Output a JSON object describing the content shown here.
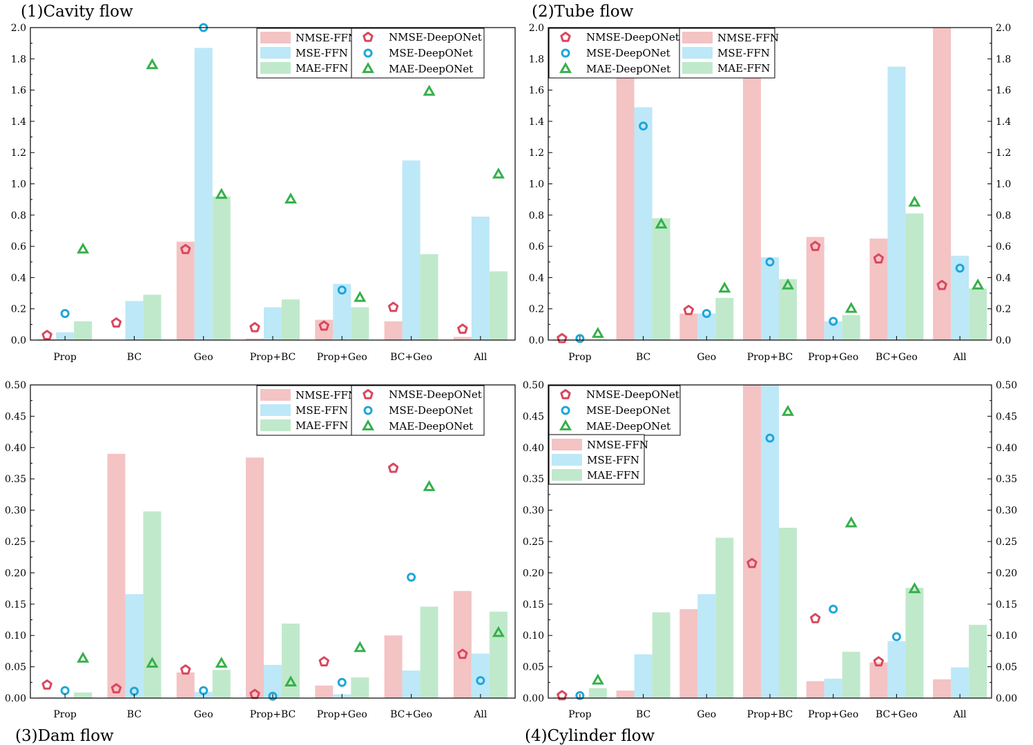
{
  "figure": {
    "description_type": "2x2 grid of grouped bar charts with marker overlays"
  },
  "colors": {
    "nmse_bar": "#f4c3c4",
    "mse_bar": "#bde8f8",
    "mae_bar": "#c0e9cb",
    "nmse_marker": "#d9475e",
    "mse_marker": "#1ea6d8",
    "mae_marker": "#35b04a"
  },
  "chart_data": [
    {
      "id": "p1",
      "type": "bar",
      "title": "(1)Cavity flow",
      "title_pos": "top",
      "categories": [
        "Prop",
        "BC",
        "Geo",
        "Prop+BC",
        "Prop+Geo",
        "BC+Geo",
        "All"
      ],
      "ylim": [
        0,
        2.0
      ],
      "yticks": [
        "0.0",
        "0.2",
        "0.4",
        "0.6",
        "0.8",
        "1.0",
        "1.2",
        "1.4",
        "1.6",
        "1.8",
        "2.0"
      ],
      "right_axis": false,
      "series": [
        {
          "name": "NMSE-FFN",
          "kind": "bar",
          "color": "#f4c3c4",
          "values": [
            0.005,
            0.0,
            0.63,
            0.01,
            0.13,
            0.12,
            0.02
          ]
        },
        {
          "name": "MSE-FFN",
          "kind": "bar",
          "color": "#bde8f8",
          "values": [
            0.05,
            0.25,
            1.87,
            0.21,
            0.36,
            1.15,
            0.79
          ]
        },
        {
          "name": "MAE-FFN",
          "kind": "bar",
          "color": "#c0e9cb",
          "values": [
            0.12,
            0.29,
            0.92,
            0.26,
            0.21,
            0.55,
            0.44
          ]
        },
        {
          "name": "NMSE-DeepONet",
          "kind": "marker",
          "marker": "pentagon",
          "color": "#d9475e",
          "values": [
            0.03,
            0.11,
            0.58,
            0.08,
            0.09,
            0.21,
            0.07
          ]
        },
        {
          "name": "MSE-DeepONet",
          "kind": "marker",
          "marker": "circle",
          "color": "#1ea6d8",
          "values": [
            0.17,
            null,
            2.0,
            null,
            0.32,
            null,
            null
          ]
        },
        {
          "name": "MAE-DeepONet",
          "kind": "marker",
          "marker": "triangle",
          "color": "#35b04a",
          "values": [
            0.58,
            1.76,
            0.93,
            0.9,
            0.27,
            1.59,
            1.06
          ]
        }
      ],
      "legend": {
        "placement": "top-right",
        "layout": "bars-left-markers-right"
      }
    },
    {
      "id": "p2",
      "type": "bar",
      "title": "(2)Tube flow",
      "title_pos": "top",
      "categories": [
        "Prop",
        "BC",
        "Geo",
        "Prop+BC",
        "Prop+Geo",
        "BC+Geo",
        "All"
      ],
      "ylim": [
        0,
        2.0
      ],
      "yticks": [
        "0.0",
        "0.2",
        "0.4",
        "0.6",
        "0.8",
        "1.0",
        "1.2",
        "1.4",
        "1.6",
        "1.8",
        "2.0"
      ],
      "right_axis": true,
      "series": [
        {
          "name": "NMSE-FFN",
          "kind": "bar",
          "color": "#f4c3c4",
          "values": [
            0.005,
            2.0,
            0.17,
            2.0,
            0.66,
            0.65,
            2.0
          ]
        },
        {
          "name": "MSE-FFN",
          "kind": "bar",
          "color": "#bde8f8",
          "values": [
            0.005,
            1.49,
            0.17,
            0.53,
            0.12,
            1.75,
            0.54
          ]
        },
        {
          "name": "MAE-FFN",
          "kind": "bar",
          "color": "#c0e9cb",
          "values": [
            0.005,
            0.78,
            0.27,
            0.39,
            0.16,
            0.81,
            0.33
          ]
        },
        {
          "name": "NMSE-DeepONet",
          "kind": "marker",
          "marker": "pentagon",
          "color": "#d9475e",
          "values": [
            0.01,
            null,
            0.19,
            null,
            0.6,
            0.52,
            0.35
          ]
        },
        {
          "name": "MSE-DeepONet",
          "kind": "marker",
          "marker": "circle",
          "color": "#1ea6d8",
          "values": [
            0.01,
            1.37,
            0.17,
            0.5,
            0.12,
            null,
            0.46
          ]
        },
        {
          "name": "MAE-DeepONet",
          "kind": "marker",
          "marker": "triangle",
          "color": "#35b04a",
          "values": [
            0.04,
            0.74,
            0.33,
            0.35,
            0.2,
            0.88,
            0.35
          ]
        }
      ],
      "legend": {
        "placement": "top-left",
        "layout": "markers-left-bars-right"
      }
    },
    {
      "id": "p3",
      "type": "bar",
      "title": "(3)Dam flow",
      "title_pos": "bottom",
      "categories": [
        "Prop",
        "BC",
        "Geo",
        "Prop+BC",
        "Prop+Geo",
        "BC+Geo",
        "All"
      ],
      "ylim": [
        0,
        0.5
      ],
      "yticks": [
        "0.00",
        "0.05",
        "0.10",
        "0.15",
        "0.20",
        "0.25",
        "0.30",
        "0.35",
        "0.40",
        "0.45",
        "0.50"
      ],
      "right_axis": false,
      "series": [
        {
          "name": "NMSE-FFN",
          "kind": "bar",
          "color": "#f4c3c4",
          "values": [
            0.001,
            0.39,
            0.041,
            0.384,
            0.02,
            0.1,
            0.171
          ]
        },
        {
          "name": "MSE-FFN",
          "kind": "bar",
          "color": "#bde8f8",
          "values": [
            0.001,
            0.166,
            0.01,
            0.053,
            0.006,
            0.044,
            0.071
          ]
        },
        {
          "name": "MAE-FFN",
          "kind": "bar",
          "color": "#c0e9cb",
          "values": [
            0.009,
            0.298,
            0.045,
            0.119,
            0.033,
            0.146,
            0.138
          ]
        },
        {
          "name": "NMSE-DeepONet",
          "kind": "marker",
          "marker": "pentagon",
          "color": "#d9475e",
          "values": [
            0.021,
            0.015,
            0.045,
            0.006,
            0.058,
            0.367,
            0.07
          ]
        },
        {
          "name": "MSE-DeepONet",
          "kind": "marker",
          "marker": "circle",
          "color": "#1ea6d8",
          "values": [
            0.012,
            0.011,
            0.012,
            0.003,
            0.025,
            0.193,
            0.028
          ]
        },
        {
          "name": "MAE-DeepONet",
          "kind": "marker",
          "marker": "triangle",
          "color": "#35b04a",
          "values": [
            0.063,
            0.055,
            0.055,
            0.025,
            0.08,
            0.337,
            0.104
          ]
        }
      ],
      "legend": {
        "placement": "top-right",
        "layout": "bars-left-markers-right"
      }
    },
    {
      "id": "p4",
      "type": "bar",
      "title": "(4)Cylinder flow",
      "title_pos": "bottom",
      "categories": [
        "Prop",
        "BC",
        "Geo",
        "Prop+BC",
        "Prop+Geo",
        "BC+Geo",
        "All"
      ],
      "ylim": [
        0,
        0.5
      ],
      "yticks": [
        "0.00",
        "0.05",
        "0.10",
        "0.15",
        "0.20",
        "0.25",
        "0.30",
        "0.35",
        "0.40",
        "0.45",
        "0.50"
      ],
      "right_axis": true,
      "series": [
        {
          "name": "NMSE-FFN",
          "kind": "bar",
          "color": "#f4c3c4",
          "values": [
            0.001,
            0.012,
            0.142,
            0.5,
            0.027,
            0.057,
            0.03
          ]
        },
        {
          "name": "MSE-FFN",
          "kind": "bar",
          "color": "#bde8f8",
          "values": [
            0.001,
            0.07,
            0.166,
            0.5,
            0.031,
            0.091,
            0.049
          ]
        },
        {
          "name": "MAE-FFN",
          "kind": "bar",
          "color": "#c0e9cb",
          "values": [
            0.016,
            0.137,
            0.256,
            0.272,
            0.074,
            0.176,
            0.117
          ]
        },
        {
          "name": "NMSE-DeepONet",
          "kind": "marker",
          "marker": "pentagon",
          "color": "#d9475e",
          "values": [
            0.004,
            null,
            null,
            0.215,
            0.127,
            0.058,
            null
          ]
        },
        {
          "name": "MSE-DeepONet",
          "kind": "marker",
          "marker": "circle",
          "color": "#1ea6d8",
          "values": [
            0.004,
            null,
            null,
            0.415,
            0.142,
            0.098,
            null
          ]
        },
        {
          "name": "MAE-DeepONet",
          "kind": "marker",
          "marker": "triangle",
          "color": "#35b04a",
          "values": [
            0.028,
            null,
            null,
            0.457,
            0.279,
            0.174,
            null
          ]
        }
      ],
      "legend": {
        "placement": "top-left",
        "layout": "markers-above-bars"
      }
    }
  ]
}
